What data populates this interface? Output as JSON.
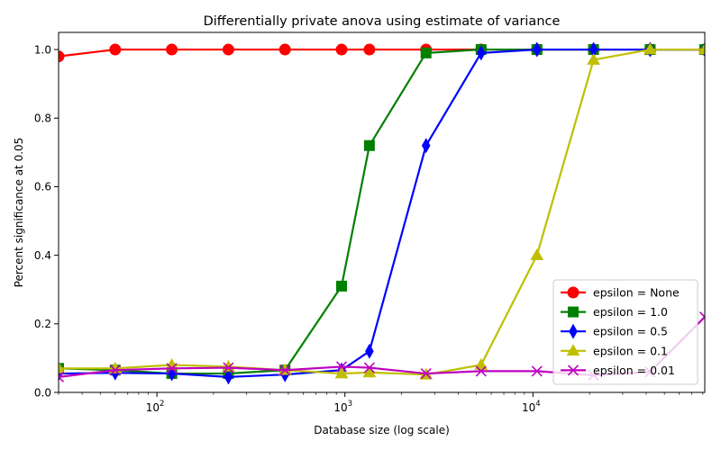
{
  "chart_data": {
    "type": "line",
    "title": "Differentially private anova using estimate of variance",
    "xlabel": "Database size (log scale)",
    "ylabel": "Percent significance at 0.05",
    "xscale": "log",
    "xlim": [
      30,
      82000
    ],
    "ylim": [
      0,
      1.05
    ],
    "x_ticks": [
      {
        "value": 100,
        "base": "10",
        "exp": "2"
      },
      {
        "value": 1000,
        "base": "10",
        "exp": "3"
      },
      {
        "value": 10000,
        "base": "10",
        "exp": "4"
      }
    ],
    "y_ticks": [
      {
        "value": 0.0,
        "label": "0.0"
      },
      {
        "value": 0.2,
        "label": "0.2"
      },
      {
        "value": 0.4,
        "label": "0.4"
      },
      {
        "value": 0.6,
        "label": "0.6"
      },
      {
        "value": 0.8,
        "label": "0.8"
      },
      {
        "value": 1.0,
        "label": "1.0"
      }
    ],
    "grid": false,
    "legend_position": "bottom-right",
    "series": [
      {
        "name": "epsilon = None",
        "color": "#ff0000",
        "marker": "circle",
        "x": [
          30,
          60,
          120,
          240,
          480,
          960,
          1350,
          2700,
          5300,
          10500,
          21000,
          42000,
          82000
        ],
        "y": [
          0.98,
          1.0,
          1.0,
          1.0,
          1.0,
          1.0,
          1.0,
          1.0,
          1.0,
          1.0,
          1.0,
          1.0,
          1.0
        ]
      },
      {
        "name": "epsilon = 1.0",
        "color": "#008000",
        "marker": "square",
        "x": [
          30,
          60,
          120,
          240,
          480,
          960,
          1350,
          2700,
          5300,
          10500,
          21000,
          42000,
          82000
        ],
        "y": [
          0.07,
          0.065,
          0.055,
          0.055,
          0.065,
          0.31,
          0.72,
          0.99,
          1.0,
          1.0,
          1.0,
          1.0,
          1.0
        ]
      },
      {
        "name": "epsilon = 0.5",
        "color": "#0000ff",
        "marker": "thin_diamond",
        "x": [
          30,
          60,
          120,
          240,
          480,
          960,
          1350,
          2700,
          5300,
          10500,
          21000,
          42000,
          82000
        ],
        "y": [
          0.055,
          0.057,
          0.055,
          0.045,
          0.052,
          0.065,
          0.12,
          0.72,
          0.99,
          1.0,
          1.0,
          1.0,
          1.0
        ]
      },
      {
        "name": "epsilon = 0.1",
        "color": "#bfbf00",
        "marker": "triangle",
        "x": [
          30,
          60,
          120,
          240,
          480,
          960,
          1350,
          2700,
          5300,
          10500,
          21000,
          42000,
          82000
        ],
        "y": [
          0.07,
          0.07,
          0.08,
          0.075,
          0.065,
          0.055,
          0.058,
          0.052,
          0.08,
          0.4,
          0.97,
          1.0,
          1.0
        ]
      },
      {
        "name": "epsilon = 0.01",
        "color": "#bf00bf",
        "marker": "x",
        "x": [
          30,
          60,
          120,
          240,
          480,
          960,
          1350,
          2700,
          5300,
          10500,
          21000,
          42000,
          82000
        ],
        "y": [
          0.045,
          0.065,
          0.07,
          0.072,
          0.065,
          0.075,
          0.072,
          0.055,
          0.062,
          0.062,
          0.05,
          0.06,
          0.22
        ]
      }
    ]
  }
}
